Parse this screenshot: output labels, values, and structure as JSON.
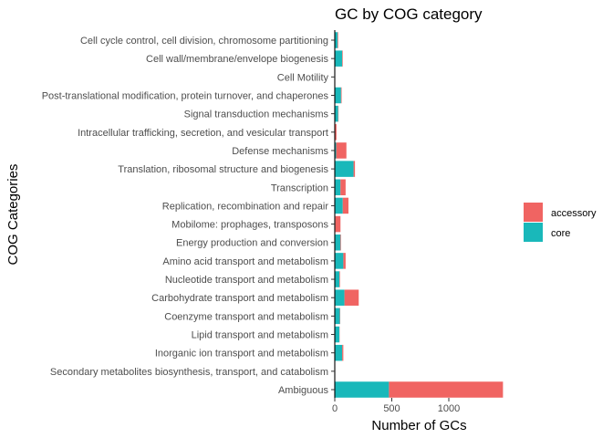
{
  "chart_data": {
    "type": "bar",
    "orientation": "horizontal",
    "stacked": true,
    "title": "GC by COG category",
    "xlabel": "Number of GCs",
    "ylabel": "COG Categories",
    "xlim": [
      0,
      1480
    ],
    "xticks": [
      0,
      500,
      1000
    ],
    "grid": false,
    "legend_position": "right",
    "categories": [
      "Cell cycle control, cell division, chromosome partitioning",
      "Cell wall/membrane/envelope biogenesis",
      "Cell Motility",
      "Post-translational modification, protein turnover, and chaperones",
      "Signal transduction mechanisms",
      "Intracellular trafficking, secretion, and vesicular transport",
      "Defense mechanisms",
      "Translation, ribosomal structure and biogenesis",
      "Transcription",
      "Replication, recombination and repair",
      "Mobilome: prophages, transposons",
      "Energy production and conversion",
      "Amino acid transport and metabolism",
      "Nucleotide transport and metabolism",
      "Carbohydrate transport and metabolism",
      "Coenzyme transport and metabolism",
      "Lipid transport and metabolism",
      "Inorganic ion transport and metabolism",
      "Secondary metabolites biosynthesis, transport, and catabolism",
      "Ambiguous"
    ],
    "series": [
      {
        "name": "core",
        "color": "#19B8BA",
        "values": [
          25,
          65,
          0,
          55,
          30,
          0,
          12,
          165,
          50,
          70,
          5,
          50,
          75,
          40,
          85,
          45,
          40,
          65,
          0,
          475
        ]
      },
      {
        "name": "accessory",
        "color": "#F06462",
        "values": [
          5,
          5,
          0,
          5,
          3,
          15,
          90,
          12,
          45,
          50,
          45,
          5,
          20,
          5,
          125,
          3,
          2,
          10,
          3,
          1000
        ]
      }
    ],
    "legend": {
      "entries": [
        "accessory",
        "core"
      ]
    }
  }
}
